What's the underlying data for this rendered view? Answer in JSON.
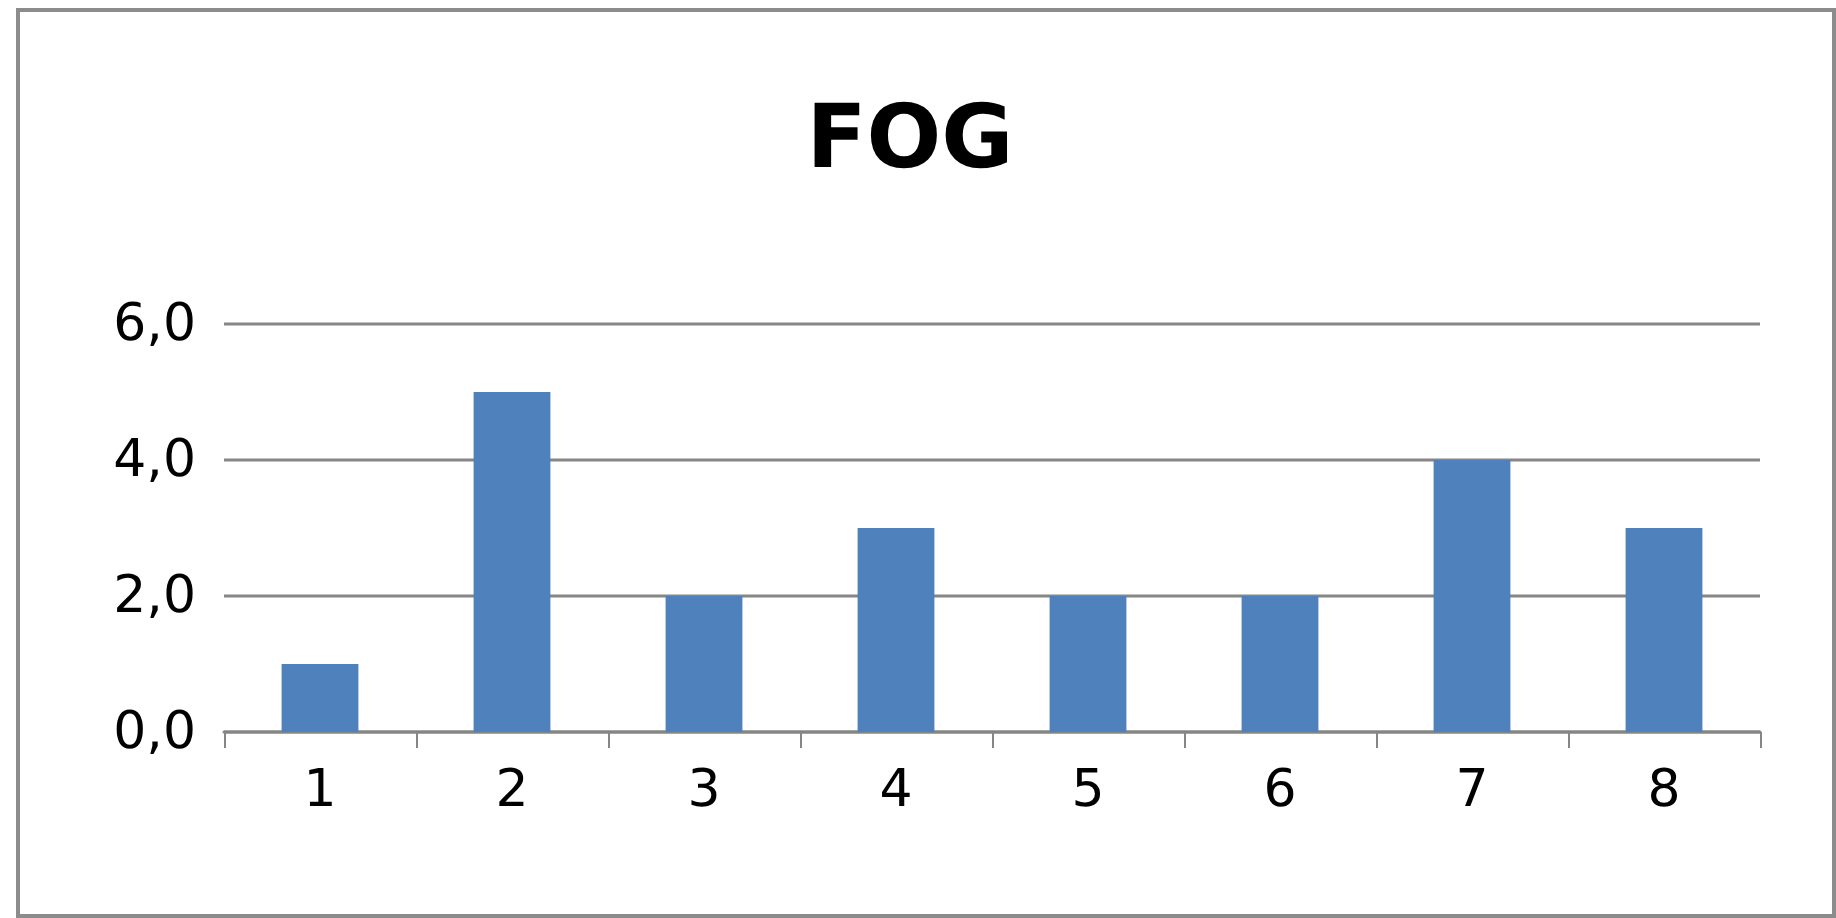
{
  "chart_data": {
    "type": "bar",
    "title": "FOG",
    "categories": [
      "1",
      "2",
      "3",
      "4",
      "5",
      "6",
      "7",
      "8"
    ],
    "values": [
      1,
      5,
      2,
      3,
      2,
      2,
      4,
      3
    ],
    "color": "#4f81bd",
    "ylim": [
      0,
      6
    ],
    "yticks": [
      {
        "value": 0,
        "label": "0,0"
      },
      {
        "value": 2,
        "label": "2,0"
      },
      {
        "value": 4,
        "label": "4,0"
      },
      {
        "value": 6,
        "label": "6,0"
      }
    ],
    "grid": "y"
  }
}
